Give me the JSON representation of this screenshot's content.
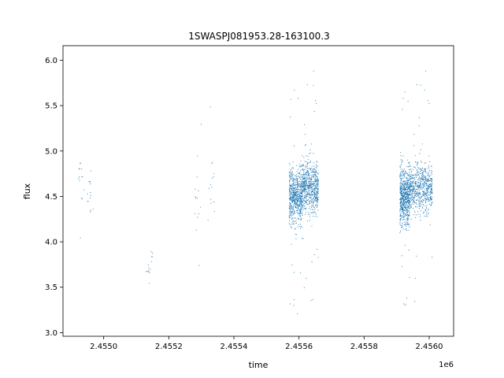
{
  "chart_data": {
    "type": "scatter",
    "title": "1SWASPJ081953.28-163100.3",
    "xlabel": "time",
    "ylabel": "flux",
    "x_offset_label": "1e6",
    "xlim": [
      2.454875,
      2.456075
    ],
    "ylim": [
      2.96,
      6.16
    ],
    "x_ticks": [
      2.455,
      2.4552,
      2.4554,
      2.4556,
      2.4558,
      2.456
    ],
    "x_tick_labels": [
      "2.4550",
      "2.4552",
      "2.4554",
      "2.4556",
      "2.4558",
      "2.4560"
    ],
    "y_ticks": [
      3.0,
      3.5,
      4.0,
      4.5,
      5.0,
      5.5,
      6.0
    ],
    "y_tick_labels": [
      "3.0",
      "3.5",
      "4.0",
      "4.5",
      "5.0",
      "5.5",
      "6.0"
    ],
    "grid": false,
    "marker_color": "#1f77b4",
    "clusters": [
      {
        "x_range": [
          2.45492,
          2.45494
        ],
        "flux_center": 4.6,
        "flux_spread": 0.45,
        "density": "low"
      },
      {
        "x_range": [
          2.45495,
          2.45497
        ],
        "flux_center": 4.5,
        "flux_spread": 0.45,
        "density": "low"
      },
      {
        "x_range": [
          2.45513,
          2.45515
        ],
        "flux_center": 3.7,
        "flux_spread": 0.35,
        "density": "low"
      },
      {
        "x_range": [
          2.45528,
          2.4553
        ],
        "flux_center": 4.4,
        "flux_spread": 0.6,
        "density": "low"
      },
      {
        "x_range": [
          2.45532,
          2.45534
        ],
        "flux_center": 4.6,
        "flux_spread": 0.45,
        "density": "low"
      },
      {
        "x_range": [
          2.45557,
          2.45561
        ],
        "flux_center": 4.5,
        "flux_spread": 0.4,
        "density": "high"
      },
      {
        "x_range": [
          2.45561,
          2.45566
        ],
        "flux_center": 4.6,
        "flux_spread": 0.35,
        "density": "high"
      },
      {
        "x_range": [
          2.45591,
          2.45594
        ],
        "flux_center": 4.5,
        "flux_spread": 0.4,
        "density": "high"
      },
      {
        "x_range": [
          2.45594,
          2.45601
        ],
        "flux_center": 4.6,
        "flux_spread": 0.35,
        "density": "high"
      }
    ]
  }
}
